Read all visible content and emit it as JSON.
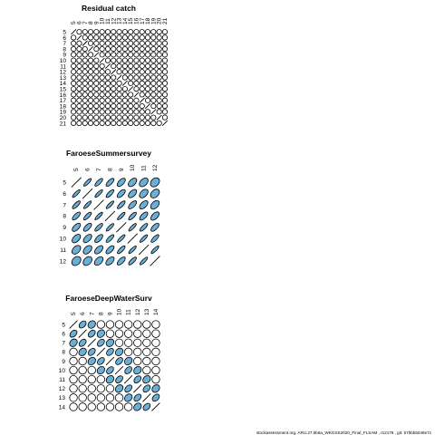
{
  "footer": "stockassessment.org, ARU.27.5b6a_WKGSS2020_Final_FLSAM , r12176 , git: b7bbb5048e7c",
  "colors": {
    "positive": "#6baed6",
    "outline": "#000000",
    "background": "#ffffff"
  },
  "chart_data": [
    {
      "type": "heatmap",
      "title": "Residual catch",
      "labels": [
        "5",
        "6",
        "7",
        "8",
        "9",
        "10",
        "11",
        "12",
        "13",
        "14",
        "15",
        "16",
        "17",
        "18",
        "19",
        "20",
        "21"
      ],
      "correlation_matrix": [
        [
          1,
          0,
          0,
          0,
          0,
          0,
          0,
          0,
          0,
          0,
          0,
          0,
          0,
          0,
          0,
          0,
          0
        ],
        [
          0,
          1,
          0,
          0,
          0,
          0,
          0,
          0,
          0,
          0,
          0,
          0,
          0,
          0,
          0,
          0,
          0
        ],
        [
          0,
          0,
          1,
          0,
          0,
          0,
          0,
          0,
          0,
          0,
          0,
          0,
          0,
          0,
          0,
          0,
          0
        ],
        [
          0,
          0,
          0,
          1,
          0,
          0,
          0,
          0,
          0,
          0,
          0,
          0,
          0,
          0,
          0,
          0,
          0
        ],
        [
          0,
          0,
          0,
          0,
          1,
          0,
          0,
          0,
          0,
          0,
          0,
          0,
          0,
          0,
          0,
          0,
          0
        ],
        [
          0,
          0,
          0,
          0,
          0,
          1,
          0,
          0,
          0,
          0,
          0,
          0,
          0,
          0,
          0,
          0,
          0
        ],
        [
          0,
          0,
          0,
          0,
          0,
          0,
          1,
          0,
          0,
          0,
          0,
          0,
          0,
          0,
          0,
          0,
          0
        ],
        [
          0,
          0,
          0,
          0,
          0,
          0,
          0,
          1,
          0,
          0,
          0,
          0,
          0,
          0,
          0,
          0,
          0
        ],
        [
          0,
          0,
          0,
          0,
          0,
          0,
          0,
          0,
          1,
          0,
          0,
          0,
          0,
          0,
          0,
          0,
          0
        ],
        [
          0,
          0,
          0,
          0,
          0,
          0,
          0,
          0,
          0,
          1,
          0,
          0,
          0,
          0,
          0,
          0,
          0
        ],
        [
          0,
          0,
          0,
          0,
          0,
          0,
          0,
          0,
          0,
          0,
          1,
          0,
          0,
          0,
          0,
          0,
          0
        ],
        [
          0,
          0,
          0,
          0,
          0,
          0,
          0,
          0,
          0,
          0,
          0,
          1,
          0,
          0,
          0,
          0,
          0
        ],
        [
          0,
          0,
          0,
          0,
          0,
          0,
          0,
          0,
          0,
          0,
          0,
          0,
          1,
          0,
          0,
          0,
          0
        ],
        [
          0,
          0,
          0,
          0,
          0,
          0,
          0,
          0,
          0,
          0,
          0,
          0,
          0,
          1,
          0,
          0,
          0
        ],
        [
          0,
          0,
          0,
          0,
          0,
          0,
          0,
          0,
          0,
          0,
          0,
          0,
          0,
          0,
          1,
          0,
          0
        ],
        [
          0,
          0,
          0,
          0,
          0,
          0,
          0,
          0,
          0,
          0,
          0,
          0,
          0,
          0,
          0,
          1,
          0
        ],
        [
          0,
          0,
          0,
          0,
          0,
          0,
          0,
          0,
          0,
          0,
          0,
          0,
          0,
          0,
          0,
          0,
          1
        ]
      ]
    },
    {
      "type": "heatmap",
      "title": "FaroeseSummersurvey",
      "labels": [
        "5",
        "6",
        "7",
        "8",
        "9",
        "10",
        "11",
        "12"
      ],
      "correlation_matrix": [
        [
          1.0,
          0.9,
          0.85,
          0.8,
          0.7,
          0.6,
          0.5,
          0.35
        ],
        [
          0.9,
          1.0,
          0.9,
          0.85,
          0.75,
          0.65,
          0.55,
          0.45
        ],
        [
          0.85,
          0.9,
          1.0,
          0.9,
          0.85,
          0.75,
          0.65,
          0.55
        ],
        [
          0.8,
          0.85,
          0.9,
          1.0,
          0.9,
          0.85,
          0.75,
          0.65
        ],
        [
          0.7,
          0.75,
          0.85,
          0.9,
          1.0,
          0.9,
          0.85,
          0.75
        ],
        [
          0.6,
          0.65,
          0.75,
          0.85,
          0.9,
          1.0,
          0.9,
          0.85
        ],
        [
          0.5,
          0.55,
          0.65,
          0.75,
          0.85,
          0.9,
          1.0,
          0.9
        ],
        [
          0.35,
          0.45,
          0.55,
          0.65,
          0.75,
          0.85,
          0.9,
          1.0
        ]
      ]
    },
    {
      "type": "heatmap",
      "title": "FaroeseDeepWaterSurv",
      "labels": [
        "5",
        "6",
        "7",
        "8",
        "9",
        "10",
        "11",
        "12",
        "13",
        "14"
      ],
      "correlation_matrix": [
        [
          1.0,
          0.5,
          0.25,
          0.0,
          0.0,
          0.0,
          0.0,
          0.0,
          0.0,
          0.0
        ],
        [
          0.5,
          1.0,
          0.5,
          0.25,
          0.0,
          0.0,
          0.0,
          0.0,
          0.0,
          0.0
        ],
        [
          0.25,
          0.5,
          1.0,
          0.5,
          0.25,
          0.0,
          0.0,
          0.0,
          0.0,
          0.0
        ],
        [
          0.0,
          0.25,
          0.5,
          1.0,
          0.5,
          0.25,
          0.0,
          0.0,
          0.0,
          0.0
        ],
        [
          0.0,
          0.0,
          0.25,
          0.5,
          1.0,
          0.5,
          0.25,
          0.0,
          0.0,
          0.0
        ],
        [
          0.0,
          0.0,
          0.0,
          0.25,
          0.5,
          1.0,
          0.5,
          0.25,
          0.0,
          0.0
        ],
        [
          0.0,
          0.0,
          0.0,
          0.0,
          0.25,
          0.5,
          1.0,
          0.5,
          0.25,
          0.0
        ],
        [
          0.0,
          0.0,
          0.0,
          0.0,
          0.0,
          0.25,
          0.5,
          1.0,
          0.5,
          0.25
        ],
        [
          0.0,
          0.0,
          0.0,
          0.0,
          0.0,
          0.0,
          0.25,
          0.5,
          1.0,
          0.5
        ],
        [
          0.0,
          0.0,
          0.0,
          0.0,
          0.0,
          0.0,
          0.0,
          0.25,
          0.5,
          1.0
        ]
      ]
    }
  ]
}
